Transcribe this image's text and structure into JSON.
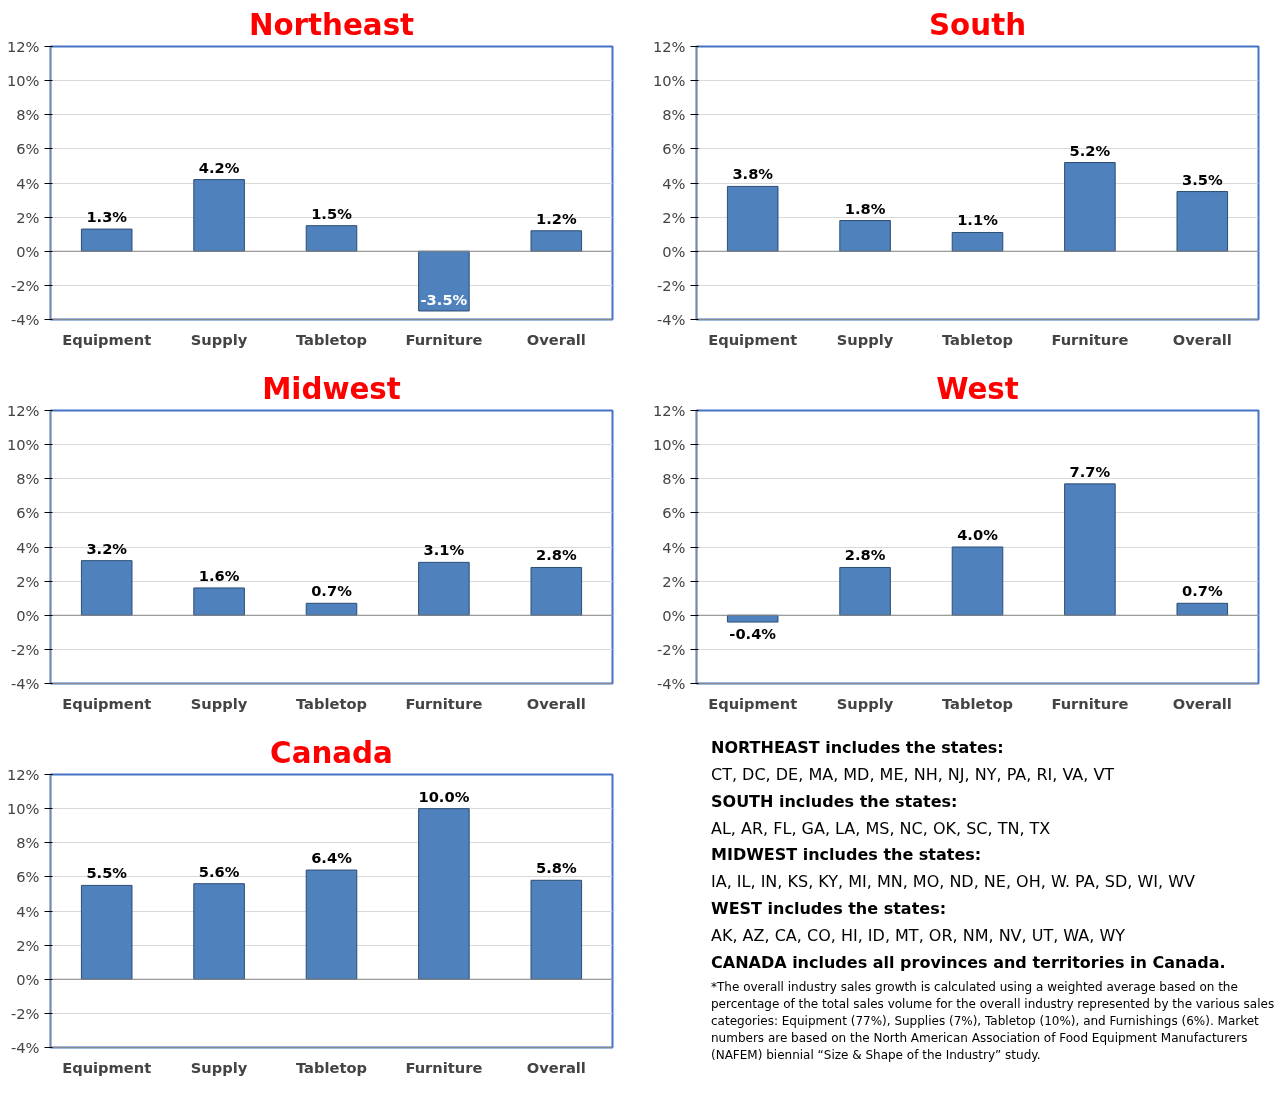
{
  "chart_data": [
    {
      "type": "bar",
      "title": "Northeast",
      "categories": [
        "Equipment",
        "Supply",
        "Tabletop",
        "Furniture",
        "Overall"
      ],
      "values": [
        1.3,
        4.2,
        1.5,
        -3.5,
        1.2
      ],
      "value_labels": [
        "1.3%",
        "4.2%",
        "1.5%",
        "-3.5%",
        "1.2%"
      ],
      "color": "#4f81bd",
      "ylim": [
        -4,
        12
      ],
      "yticks": [
        {
          "value": -4,
          "label": "-4%"
        },
        {
          "value": -2,
          "label": "-2%"
        },
        {
          "value": 0,
          "label": "0%"
        },
        {
          "value": 2,
          "label": "2%"
        },
        {
          "value": 4,
          "label": "4%"
        },
        {
          "value": 6,
          "label": "6%"
        },
        {
          "value": 8,
          "label": "8%"
        },
        {
          "value": 10,
          "label": "10%"
        },
        {
          "value": 12,
          "label": "12%"
        }
      ],
      "grid": "y"
    },
    {
      "type": "bar",
      "title": "South",
      "categories": [
        "Equipment",
        "Supply",
        "Tabletop",
        "Furniture",
        "Overall"
      ],
      "values": [
        3.8,
        1.8,
        1.1,
        5.2,
        3.5
      ],
      "value_labels": [
        "3.8%",
        "1.8%",
        "1.1%",
        "5.2%",
        "3.5%"
      ],
      "color": "#4f81bd",
      "ylim": [
        -4,
        12
      ],
      "yticks": [
        {
          "value": -4,
          "label": "-4%"
        },
        {
          "value": -2,
          "label": "-2%"
        },
        {
          "value": 0,
          "label": "0%"
        },
        {
          "value": 2,
          "label": "2%"
        },
        {
          "value": 4,
          "label": "4%"
        },
        {
          "value": 6,
          "label": "6%"
        },
        {
          "value": 8,
          "label": "8%"
        },
        {
          "value": 10,
          "label": "10%"
        },
        {
          "value": 12,
          "label": "12%"
        }
      ],
      "grid": "y"
    },
    {
      "type": "bar",
      "title": "Midwest",
      "categories": [
        "Equipment",
        "Supply",
        "Tabletop",
        "Furniture",
        "Overall"
      ],
      "values": [
        3.2,
        1.6,
        0.7,
        3.1,
        2.8
      ],
      "value_labels": [
        "3.2%",
        "1.6%",
        "0.7%",
        "3.1%",
        "2.8%"
      ],
      "color": "#4f81bd",
      "ylim": [
        -4,
        12
      ],
      "yticks": [
        {
          "value": -4,
          "label": "-4%"
        },
        {
          "value": -2,
          "label": "-2%"
        },
        {
          "value": 0,
          "label": "0%"
        },
        {
          "value": 2,
          "label": "2%"
        },
        {
          "value": 4,
          "label": "4%"
        },
        {
          "value": 6,
          "label": "6%"
        },
        {
          "value": 8,
          "label": "8%"
        },
        {
          "value": 10,
          "label": "10%"
        },
        {
          "value": 12,
          "label": "12%"
        }
      ],
      "grid": "y"
    },
    {
      "type": "bar",
      "title": "West",
      "categories": [
        "Equipment",
        "Supply",
        "Tabletop",
        "Furniture",
        "Overall"
      ],
      "values": [
        -0.4,
        2.8,
        4.0,
        7.7,
        0.7
      ],
      "value_labels": [
        "-0.4%",
        "2.8%",
        "4.0%",
        "7.7%",
        "0.7%"
      ],
      "color": "#4f81bd",
      "ylim": [
        -4,
        12
      ],
      "yticks": [
        {
          "value": -4,
          "label": "-4%"
        },
        {
          "value": -2,
          "label": "-2%"
        },
        {
          "value": 0,
          "label": "0%"
        },
        {
          "value": 2,
          "label": "2%"
        },
        {
          "value": 4,
          "label": "4%"
        },
        {
          "value": 6,
          "label": "6%"
        },
        {
          "value": 8,
          "label": "8%"
        },
        {
          "value": 10,
          "label": "10%"
        },
        {
          "value": 12,
          "label": "12%"
        }
      ],
      "grid": "y"
    },
    {
      "type": "bar",
      "title": "Canada",
      "categories": [
        "Equipment",
        "Supply",
        "Tabletop",
        "Furniture",
        "Overall"
      ],
      "values": [
        5.5,
        5.6,
        6.4,
        10.0,
        5.8
      ],
      "value_labels": [
        "5.5%",
        "5.6%",
        "6.4%",
        "10.0%",
        "5.8%"
      ],
      "color": "#4f81bd",
      "ylim": [
        -4,
        12
      ],
      "yticks": [
        {
          "value": -4,
          "label": "-4%"
        },
        {
          "value": -2,
          "label": "-2%"
        },
        {
          "value": 0,
          "label": "0%"
        },
        {
          "value": 2,
          "label": "2%"
        },
        {
          "value": 4,
          "label": "4%"
        },
        {
          "value": 6,
          "label": "6%"
        },
        {
          "value": 8,
          "label": "8%"
        },
        {
          "value": 10,
          "label": "10%"
        },
        {
          "value": 12,
          "label": "12%"
        }
      ],
      "grid": "y"
    },
    {
      "type": "other",
      "annotations": [
        "NORTHEAST includes the states:",
        "CT, DC, DE, MA, MD, ME, NH, NJ, NY, PA, RI, VA, VT",
        "SOUTH includes the states:",
        "AL, AR, FL, GA, LA, MS, NC, OK, SC, TN, TX",
        "MIDWEST includes the states:",
        "IA, IL, IN, KS, KY, MI, MN, MO, ND, NE, OH, W. PA, SD, WI, WV",
        "WEST includes the states:",
        "AK, AZ, CA, CO, HI, ID, MT, OR, NM, NV, UT, WA, WY",
        "CANADA includes all provinces and territories in Canada.",
        "*The overall industry sales growth is calculated using a weighted average based on the percentage of the total sales volume for the overall industry represented by the various sales categories:  Equipment (77%), Supplies (7%), Tabletop (10%), and Furnishings (6%). Market numbers are based on the North American Association of Food Equipment Manufacturers (NAFEM) biennial “Size & Shape of the Industry” study."
      ]
    }
  ]
}
